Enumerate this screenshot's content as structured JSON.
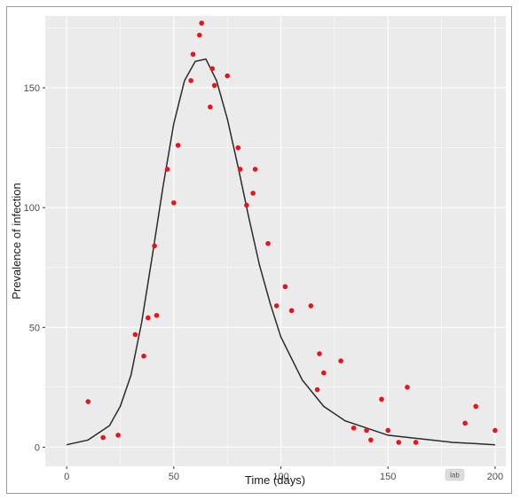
{
  "chart_data": {
    "type": "scatter",
    "title": "",
    "xlabel": "Time (days)",
    "ylabel": "Prevalence of infection",
    "xlim": [
      -10,
      205
    ],
    "ylim": [
      -8,
      180
    ],
    "x_ticks": [
      0,
      50,
      100,
      150,
      200
    ],
    "y_ticks": [
      0,
      50,
      100,
      150
    ],
    "grid": true,
    "colors": {
      "points": "#e8141a",
      "curve": "#2b2b2b",
      "panel": "#ebebeb",
      "gridline": "#ffffff"
    },
    "points": [
      [
        10,
        19
      ],
      [
        17,
        4
      ],
      [
        24,
        5
      ],
      [
        32,
        47
      ],
      [
        36,
        38
      ],
      [
        38,
        54
      ],
      [
        41,
        84
      ],
      [
        42,
        55
      ],
      [
        47,
        116
      ],
      [
        50,
        102
      ],
      [
        52,
        126
      ],
      [
        58,
        153
      ],
      [
        59,
        164
      ],
      [
        62,
        172
      ],
      [
        63,
        177
      ],
      [
        67,
        142
      ],
      [
        68,
        158
      ],
      [
        69,
        151
      ],
      [
        75,
        155
      ],
      [
        80,
        125
      ],
      [
        81,
        116
      ],
      [
        84,
        101
      ],
      [
        87,
        106
      ],
      [
        88,
        116
      ],
      [
        94,
        85
      ],
      [
        98,
        59
      ],
      [
        102,
        67
      ],
      [
        105,
        57
      ],
      [
        114,
        59
      ],
      [
        117,
        24
      ],
      [
        118,
        39
      ],
      [
        120,
        31
      ],
      [
        128,
        36
      ],
      [
        134,
        8
      ],
      [
        140,
        7
      ],
      [
        142,
        3
      ],
      [
        147,
        20
      ],
      [
        150,
        7
      ],
      [
        155,
        2
      ],
      [
        159,
        25
      ],
      [
        163,
        2
      ],
      [
        186,
        10
      ],
      [
        191,
        17
      ],
      [
        200,
        7
      ]
    ],
    "fitted_curve": {
      "x": [
        0,
        10,
        20,
        25,
        30,
        35,
        40,
        45,
        50,
        55,
        60,
        65,
        70,
        75,
        80,
        85,
        90,
        95,
        100,
        110,
        120,
        130,
        140,
        150,
        160,
        170,
        180,
        190,
        200
      ],
      "y": [
        1,
        3,
        9,
        17,
        30,
        52,
        80,
        109,
        135,
        153,
        161,
        162,
        153,
        137,
        117,
        96,
        76,
        60,
        46,
        28,
        17,
        11,
        8,
        5,
        4,
        3,
        2,
        1.5,
        1
      ]
    }
  },
  "badge": {
    "label": "lab"
  }
}
